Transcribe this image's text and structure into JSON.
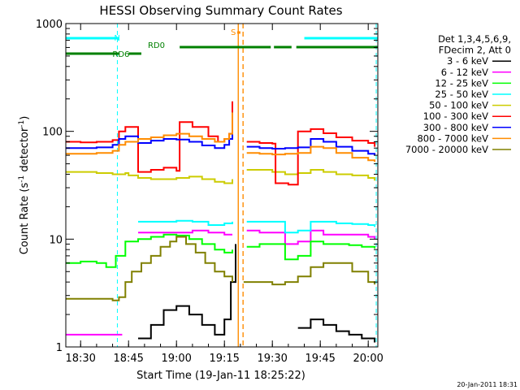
{
  "chart_data": {
    "type": "line",
    "title": "HESSI Observing Summary Count Rates",
    "xlabel": "Start Time (19-Jan-11 18:25:22)",
    "ylabel": "Count Rate (s",
    "ylabel_sup": "-1",
    "ylabel_tail": " detector",
    "ylabel_end": ")",
    "yscale": "log",
    "ylim": [
      1,
      1000
    ],
    "xlim": [
      "18:25:22",
      "20:03:00"
    ],
    "x_ticks": [
      "18:30",
      "18:45",
      "19:00",
      "19:15",
      "19:30",
      "19:45",
      "20:00"
    ],
    "y_ticks": [
      "1",
      "10",
      "100",
      "1000"
    ],
    "stamp": "20-Jan-2011 18:31",
    "legend": {
      "placement": "right",
      "header": [
        "Det 1,3,4,5,6,9,",
        "FDecim 2, Att 0"
      ]
    },
    "annotations": [
      {
        "label": "N",
        "color": "#00ffff",
        "segments": [
          [
            "18:25:22",
            "18:42:00"
          ],
          [
            "19:40:00",
            "20:03:00"
          ]
        ]
      },
      {
        "label": "RD0",
        "color": "#008000",
        "segments": [
          [
            "19:01:00",
            "19:29:30"
          ],
          [
            "19:30:30",
            "19:36:00"
          ],
          [
            "19:37:30",
            "20:03:00"
          ]
        ]
      },
      {
        "label": "RD6",
        "color": "#008000",
        "segments": [
          [
            "18:25:22",
            "18:42:00"
          ],
          [
            "18:45:00",
            "18:49:00"
          ]
        ]
      },
      {
        "label": "S",
        "color": "#ff8c00",
        "segments": [
          [
            "19:19:00",
            "19:20:00"
          ]
        ]
      }
    ],
    "night_lines": [
      "18:41:30",
      "20:02:30"
    ],
    "saa_lines": [
      "19:19:20",
      "19:20:50"
    ],
    "series": [
      {
        "name": "3 - 6 keV",
        "color": "#000000",
        "x": [
          "18:25:22",
          "18:44:00",
          "18:48:00",
          "18:52:00",
          "18:56:00",
          "19:00:00",
          "19:04:00",
          "19:08:00",
          "19:12:00",
          "19:15:00",
          "19:17:00",
          "19:18:30",
          "19:19:00",
          "19:38:00",
          "19:42:00",
          "19:46:00",
          "19:50:00",
          "19:54:00",
          "19:58:00",
          "20:02:00"
        ],
        "values": [
          null,
          null,
          1.2,
          1.6,
          2.2,
          2.4,
          2.0,
          1.6,
          1.3,
          1.8,
          4.0,
          9.0,
          null,
          1.5,
          1.8,
          1.6,
          1.4,
          1.3,
          1.2,
          1.1
        ]
      },
      {
        "name": "6 - 12 keV",
        "color": "#ff00ff",
        "x": [
          "18:25:22",
          "18:30:00",
          "18:35:00",
          "18:40:00",
          "18:43:00",
          "18:44:00",
          "18:48:00",
          "18:50:00",
          "18:55:00",
          "19:00:00",
          "19:05:00",
          "19:10:00",
          "19:15:00",
          "19:17:30",
          "19:19:00",
          "19:22:00",
          "19:26:00",
          "19:30:00",
          "19:34:00",
          "19:38:00",
          "19:42:00",
          "19:46:00",
          "19:50:00",
          "19:55:00",
          "20:00:00",
          "20:02:00"
        ],
        "values": [
          1.3,
          1.3,
          1.3,
          1.3,
          1.3,
          null,
          11.5,
          11.5,
          11.5,
          11.5,
          12.0,
          11.5,
          11.0,
          11.0,
          null,
          12.0,
          11.5,
          11.5,
          9.0,
          9.5,
          12.0,
          11.0,
          11.0,
          11.0,
          10.5,
          10.0
        ]
      },
      {
        "name": "12 - 25 keV",
        "color": "#00ff00",
        "x": [
          "18:25:22",
          "18:30:00",
          "18:35:00",
          "18:38:00",
          "18:41:00",
          "18:44:00",
          "18:48:00",
          "18:52:00",
          "18:56:00",
          "19:00:00",
          "19:04:00",
          "19:08:00",
          "19:12:00",
          "19:15:00",
          "19:17:30",
          "19:19:00",
          "19:22:00",
          "19:26:00",
          "19:30:00",
          "19:34:00",
          "19:38:00",
          "19:42:00",
          "19:46:00",
          "19:50:00",
          "19:54:00",
          "19:58:00",
          "20:02:00"
        ],
        "values": [
          6.0,
          6.2,
          6.0,
          5.5,
          7.0,
          9.5,
          10.0,
          10.5,
          11.0,
          10.8,
          10.0,
          9.0,
          8.0,
          7.5,
          8.0,
          null,
          8.5,
          9.0,
          9.0,
          6.5,
          7.0,
          9.5,
          9.0,
          9.0,
          8.8,
          8.5,
          8.2
        ]
      },
      {
        "name": "25 - 50 keV",
        "color": "#00ffff",
        "x": [
          "18:25:22",
          "18:30:00",
          "18:35:00",
          "18:40:00",
          "18:44:00",
          "18:48:00",
          "18:50:00",
          "18:55:00",
          "19:00:00",
          "19:05:00",
          "19:10:00",
          "19:15:00",
          "19:17:30",
          "19:19:00",
          "19:22:00",
          "19:26:00",
          "19:30:00",
          "19:34:00",
          "19:38:00",
          "19:42:00",
          "19:46:00",
          "19:50:00",
          "19:55:00",
          "20:00:00",
          "20:02:00"
        ],
        "values": [
          null,
          null,
          null,
          null,
          null,
          14.5,
          14.5,
          14.5,
          14.8,
          14.5,
          13.5,
          14.0,
          14.5,
          null,
          14.5,
          14.5,
          14.5,
          11.5,
          12.0,
          14.5,
          14.5,
          14.0,
          13.8,
          13.5,
          13.0
        ]
      },
      {
        "name": "50 - 100 keV",
        "color": "#cccc00",
        "x": [
          "18:25:22",
          "18:30:00",
          "18:35:00",
          "18:40:00",
          "18:42:00",
          "18:44:00",
          "18:45:00",
          "18:48:00",
          "18:52:00",
          "18:56:00",
          "19:00:00",
          "19:04:00",
          "19:08:00",
          "19:12:00",
          "19:15:00",
          "19:17:30",
          "19:19:00",
          "19:22:00",
          "19:26:00",
          "19:30:00",
          "19:34:00",
          "19:38:00",
          "19:42:00",
          "19:46:00",
          "19:50:00",
          "19:55:00",
          "20:00:00",
          "20:02:00"
        ],
        "values": [
          42,
          42,
          41,
          40,
          40,
          41,
          39,
          37,
          36,
          36,
          37,
          38,
          36,
          34,
          33,
          36,
          null,
          44,
          44,
          42,
          40,
          41,
          44,
          42,
          40,
          39,
          37,
          35
        ]
      },
      {
        "name": "100 - 300 keV",
        "color": "#ff0000",
        "x": [
          "18:25:22",
          "18:30:00",
          "18:35:00",
          "18:40:00",
          "18:42:00",
          "18:44:00",
          "18:48:00",
          "18:52:00",
          "18:56:00",
          "19:00:00",
          "19:01:00",
          "19:05:00",
          "19:10:00",
          "19:13:00",
          "19:15:00",
          "19:16:30",
          "19:17:30",
          "19:19:00",
          "19:22:00",
          "19:26:00",
          "19:30:00",
          "19:31:00",
          "19:35:00",
          "19:38:00",
          "19:42:00",
          "19:46:00",
          "19:50:00",
          "19:55:00",
          "20:00:00",
          "20:02:00"
        ],
        "values": [
          80,
          79,
          80,
          83,
          100,
          110,
          42,
          44,
          46,
          43,
          122,
          110,
          90,
          80,
          85,
          95,
          190,
          null,
          80,
          78,
          77,
          33,
          32,
          100,
          105,
          96,
          88,
          82,
          78,
          72
        ]
      },
      {
        "name": "300 - 800 keV",
        "color": "#0000ff",
        "x": [
          "18:25:22",
          "18:30:00",
          "18:35:00",
          "18:40:00",
          "18:42:00",
          "18:44:00",
          "18:48:00",
          "18:52:00",
          "18:56:00",
          "19:00:00",
          "19:04:00",
          "19:08:00",
          "19:12:00",
          "19:15:00",
          "19:16:30",
          "19:17:30",
          "19:19:00",
          "19:22:00",
          "19:26:00",
          "19:30:00",
          "19:34:00",
          "19:38:00",
          "19:42:00",
          "19:46:00",
          "19:50:00",
          "19:55:00",
          "20:00:00",
          "20:02:00"
        ],
        "values": [
          70,
          70,
          71,
          75,
          85,
          90,
          78,
          82,
          85,
          84,
          80,
          74,
          70,
          75,
          85,
          150,
          null,
          72,
          70,
          69,
          70,
          71,
          85,
          80,
          72,
          66,
          62,
          60
        ]
      },
      {
        "name": "800 - 7000 keV",
        "color": "#ff8c00",
        "x": [
          "18:25:22",
          "18:30:00",
          "18:35:00",
          "18:40:00",
          "18:42:00",
          "18:44:00",
          "18:48:00",
          "18:52:00",
          "18:56:00",
          "19:00:00",
          "19:04:00",
          "19:08:00",
          "19:12:00",
          "19:15:00",
          "19:16:30",
          "19:17:30",
          "19:19:00",
          "19:22:00",
          "19:26:00",
          "19:30:00",
          "19:34:00",
          "19:38:00",
          "19:42:00",
          "19:46:00",
          "19:50:00",
          "19:55:00",
          "20:00:00",
          "20:02:00"
        ],
        "values": [
          62,
          62,
          63,
          66,
          75,
          80,
          85,
          88,
          92,
          95,
          90,
          85,
          80,
          85,
          95,
          150,
          null,
          63,
          62,
          61,
          62,
          63,
          72,
          70,
          63,
          57,
          54,
          52
        ]
      },
      {
        "name": "7000 - 20000 keV",
        "color": "#808000",
        "x": [
          "18:25:22",
          "18:30:00",
          "18:35:00",
          "18:40:00",
          "18:42:00",
          "18:44:00",
          "18:46:00",
          "18:49:00",
          "18:52:00",
          "18:55:00",
          "18:58:00",
          "19:00:00",
          "19:03:00",
          "19:06:00",
          "19:09:00",
          "19:12:00",
          "19:15:00",
          "19:17:30",
          "19:19:00",
          "19:21:00",
          "19:25:00",
          "19:30:00",
          "19:34:00",
          "19:38:00",
          "19:42:00",
          "19:46:00",
          "19:50:00",
          "19:55:00",
          "20:00:00",
          "20:02:00"
        ],
        "values": [
          2.8,
          2.8,
          2.8,
          2.7,
          2.9,
          4.0,
          5.0,
          6.0,
          7.0,
          8.5,
          9.5,
          10.5,
          9.0,
          7.5,
          6.0,
          5.0,
          4.5,
          4.0,
          null,
          4.0,
          4.0,
          3.8,
          4.0,
          4.5,
          5.5,
          6.0,
          6.0,
          5.0,
          4.0,
          3.8
        ]
      }
    ]
  }
}
